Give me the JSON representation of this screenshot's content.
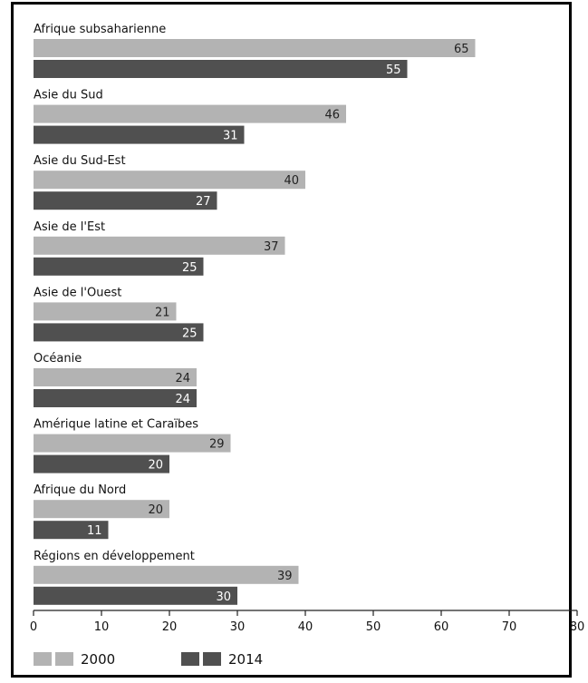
{
  "chart_data": {
    "type": "bar",
    "orientation": "horizontal",
    "categories": [
      "Afrique subsaharienne",
      "Asie du Sud",
      "Asie du Sud-Est",
      "Asie de l'Est",
      "Asie de l'Ouest",
      "Océanie",
      "Amérique latine et Caraïbes",
      "Afrique du Nord",
      "Régions en développement"
    ],
    "series": [
      {
        "name": "2000",
        "values": [
          65,
          46,
          40,
          37,
          21,
          24,
          29,
          20,
          39
        ],
        "color": "#b3b3b3"
      },
      {
        "name": "2014",
        "values": [
          55,
          31,
          27,
          25,
          25,
          24,
          20,
          11,
          30
        ],
        "color": "#505050"
      }
    ],
    "xlim": [
      0,
      80
    ],
    "xticks": [
      "0",
      "10",
      "20",
      "30",
      "40",
      "50",
      "60",
      "70",
      "80"
    ],
    "legend_placement": "bottom-left",
    "grid": false
  }
}
